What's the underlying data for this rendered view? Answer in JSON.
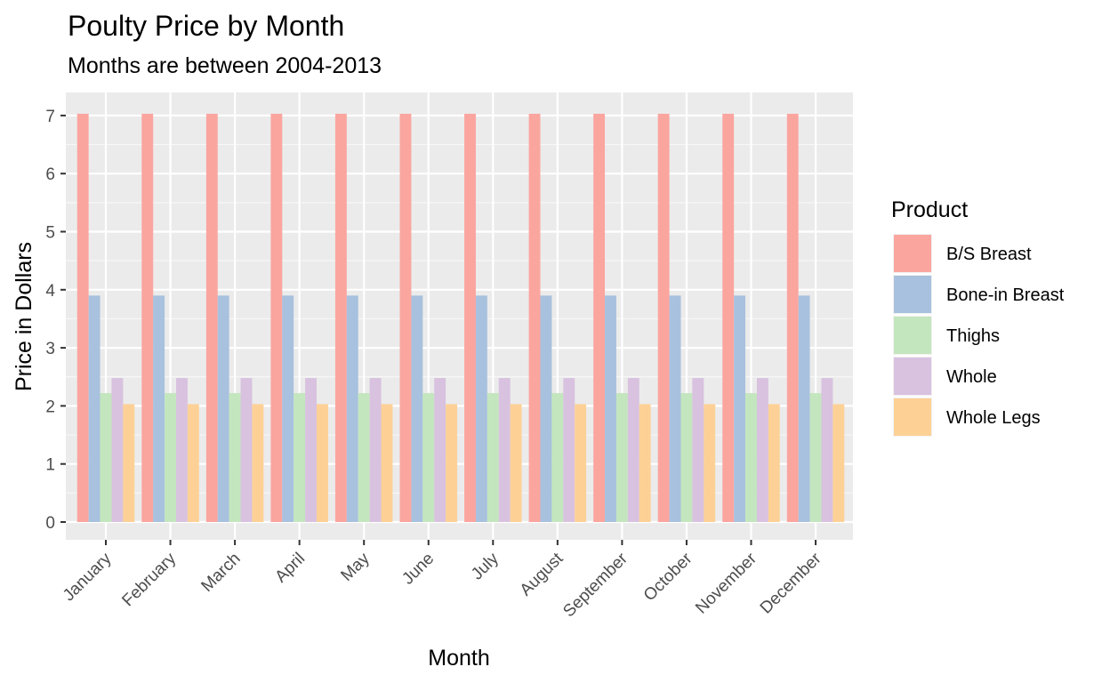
{
  "chart_data": {
    "type": "bar",
    "title": "Poulty Price by Month",
    "subtitle": "Months are between 2004-2013",
    "xlabel": "Month",
    "ylabel": "Price in Dollars",
    "ylim": [
      0,
      7.4
    ],
    "yticks": [
      0,
      1,
      2,
      3,
      4,
      5,
      6,
      7
    ],
    "grid": true,
    "legend_position": "right",
    "legend_title": "Product",
    "categories": [
      "January",
      "February",
      "March",
      "April",
      "May",
      "June",
      "July",
      "August",
      "September",
      "October",
      "November",
      "December"
    ],
    "series": [
      {
        "name": "B/S Breast",
        "color": "#FBA59F",
        "values": [
          7.03,
          7.03,
          7.03,
          7.03,
          7.03,
          7.03,
          7.03,
          7.03,
          7.03,
          7.03,
          7.03,
          7.03
        ]
      },
      {
        "name": "Bone-in Breast",
        "color": "#A8C1DE",
        "values": [
          3.9,
          3.9,
          3.9,
          3.9,
          3.9,
          3.9,
          3.9,
          3.9,
          3.9,
          3.9,
          3.9,
          3.9
        ]
      },
      {
        "name": "Thighs",
        "color": "#C4E6BE",
        "values": [
          2.22,
          2.22,
          2.22,
          2.22,
          2.22,
          2.22,
          2.22,
          2.22,
          2.22,
          2.22,
          2.22,
          2.22
        ]
      },
      {
        "name": "Whole",
        "color": "#D8C2DF",
        "values": [
          2.48,
          2.48,
          2.48,
          2.48,
          2.48,
          2.48,
          2.48,
          2.48,
          2.48,
          2.48,
          2.48,
          2.48
        ]
      },
      {
        "name": "Whole Legs",
        "color": "#FDD196",
        "values": [
          2.03,
          2.03,
          2.03,
          2.03,
          2.03,
          2.03,
          2.03,
          2.03,
          2.03,
          2.03,
          2.03,
          2.03
        ]
      }
    ]
  }
}
